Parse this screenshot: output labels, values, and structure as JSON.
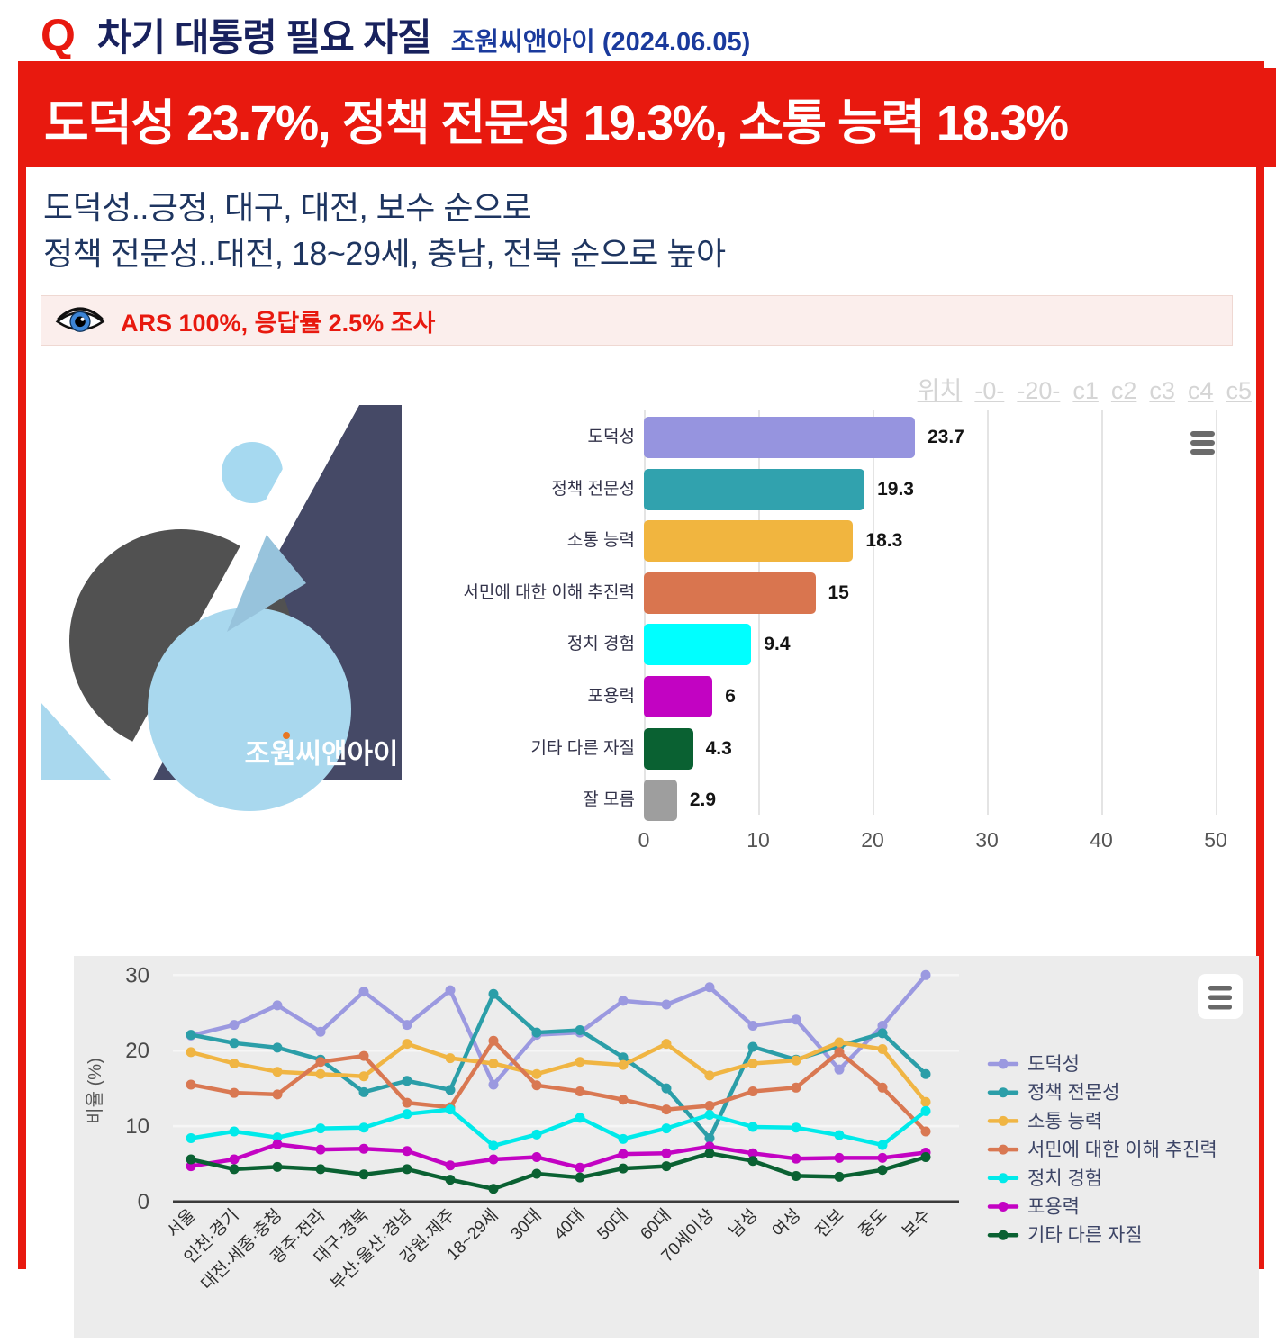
{
  "header": {
    "q": "Q",
    "title": "차기 대통령 필요 자질",
    "source": "조원씨앤아이 (2024.06.05)"
  },
  "banner": {
    "headline": "도덕성 23.7%, 정책 전문성 19.3%, 소통 능력 18.3%"
  },
  "subtitle": {
    "line1": "도덕성..긍정, 대구, 대전, 보수 순으로",
    "line2": "정책 전문성..대전, 18~29세, 충남, 전북 순으로 높아"
  },
  "survey_note": {
    "text": "ARS 100%, 응답률 2.5% 조사",
    "icon": "eye-icon"
  },
  "position_links": {
    "label": "위치",
    "items": [
      "-0-",
      "-20-",
      "c1",
      "c2",
      "c3",
      "c4",
      "c5"
    ]
  },
  "logo": {
    "text": "조원씨앤아이"
  },
  "colors": {
    "accent_red": "#e8190f",
    "title_navy": "#18215d",
    "source_blue": "#1a3a9c",
    "subtitle_navy": "#1e3560",
    "note_bg": "#fbeeec",
    "line_chart_bg": "#ececec"
  },
  "chart_data": [
    {
      "type": "bar",
      "orientation": "horizontal",
      "categories": [
        "도덕성",
        "정책 전문성",
        "소통 능력",
        "서민에 대한 이해 추진력",
        "정치 경험",
        "포용력",
        "기타 다른 자질",
        "잘 모름"
      ],
      "values": [
        23.7,
        19.3,
        18.3,
        15,
        9.4,
        6,
        4.3,
        2.9
      ],
      "value_labels": [
        "23.7",
        "19.3",
        "18.3",
        "15",
        "9.4",
        "6",
        "4.3",
        "2.9"
      ],
      "colors": [
        "#9694df",
        "#31a2ae",
        "#f1b53f",
        "#d9754f",
        "#00ffff",
        "#c203c2",
        "#0a6132",
        "#9e9e9e"
      ],
      "xlim": [
        0,
        50
      ],
      "xticks": [
        0,
        10,
        20,
        30,
        40,
        50
      ],
      "grid": true
    },
    {
      "type": "line",
      "categories": [
        "서울",
        "인천·경기",
        "대전·세종·충청",
        "광주·전라",
        "대구·경북",
        "부산·울산·경남",
        "강원·제주",
        "18~29세",
        "30대",
        "40대",
        "50대",
        "60대",
        "70세이상",
        "남성",
        "여성",
        "진보",
        "중도",
        "보수"
      ],
      "ylabel": "비율 (%)",
      "ylim": [
        0,
        30
      ],
      "yticks": [
        0,
        10,
        20,
        30
      ],
      "grid": true,
      "legend_position": "right",
      "series": [
        {
          "name": "도덕성",
          "color": "#9b99e0",
          "values": [
            22.0,
            23.4,
            26.0,
            22.5,
            27.8,
            23.4,
            28.0,
            15.5,
            22.1,
            22.4,
            26.6,
            26.1,
            28.4,
            23.3,
            24.1,
            17.5,
            23.3,
            30.0
          ]
        },
        {
          "name": "정책 전문성",
          "color": "#2b9ea8",
          "values": [
            22.1,
            21.0,
            20.4,
            18.8,
            14.5,
            16.0,
            14.8,
            27.5,
            22.4,
            22.7,
            19.1,
            15.0,
            8.4,
            20.5,
            18.8,
            20.6,
            22.3,
            16.9
          ]
        },
        {
          "name": "소통 능력",
          "color": "#f0b543",
          "values": [
            19.8,
            18.3,
            17.2,
            16.9,
            16.6,
            20.9,
            19.0,
            18.3,
            16.9,
            18.5,
            18.1,
            20.9,
            16.7,
            18.3,
            18.7,
            21.1,
            20.2,
            13.2
          ]
        },
        {
          "name": "서민에 대한 이해 추진력",
          "color": "#d97852",
          "values": [
            15.5,
            14.4,
            14.2,
            18.5,
            19.3,
            13.1,
            12.5,
            21.3,
            15.4,
            14.6,
            13.5,
            12.2,
            12.7,
            14.6,
            15.1,
            19.8,
            15.1,
            9.3
          ]
        },
        {
          "name": "정치 경험",
          "color": "#00eaea",
          "values": [
            8.4,
            9.3,
            8.5,
            9.7,
            9.8,
            11.6,
            12.2,
            7.4,
            8.9,
            11.1,
            8.3,
            9.7,
            11.5,
            9.9,
            9.8,
            8.8,
            7.5,
            12.0
          ]
        },
        {
          "name": "포용력",
          "color": "#c303c3",
          "values": [
            4.7,
            5.6,
            7.6,
            6.9,
            7.0,
            6.7,
            4.8,
            5.6,
            5.9,
            4.5,
            6.3,
            6.4,
            7.3,
            6.4,
            5.7,
            5.8,
            5.8,
            6.5
          ]
        },
        {
          "name": "기타 다른 자질",
          "color": "#0a6132",
          "values": [
            5.6,
            4.3,
            4.6,
            4.3,
            3.6,
            4.3,
            2.9,
            1.7,
            3.7,
            3.2,
            4.4,
            4.7,
            6.4,
            5.4,
            3.4,
            3.3,
            4.2,
            5.9
          ]
        }
      ]
    }
  ]
}
